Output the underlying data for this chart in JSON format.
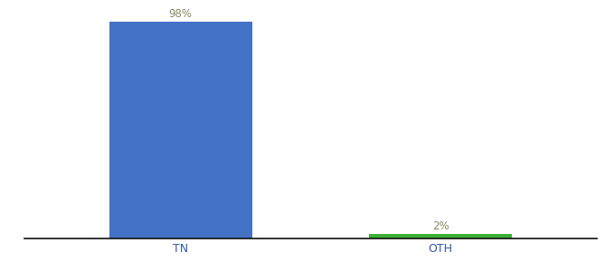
{
  "categories": [
    "TN",
    "OTH"
  ],
  "values": [
    98,
    2
  ],
  "bar_colors": [
    "#4472C4",
    "#3CB034"
  ],
  "label_color": "#888866",
  "background_color": "#ffffff",
  "ylim": [
    0,
    103
  ],
  "bar_width": 0.55,
  "label_fontsize": 8.5,
  "tick_fontsize": 9,
  "spine_color": "#111111",
  "xlim": [
    -0.6,
    1.6
  ]
}
